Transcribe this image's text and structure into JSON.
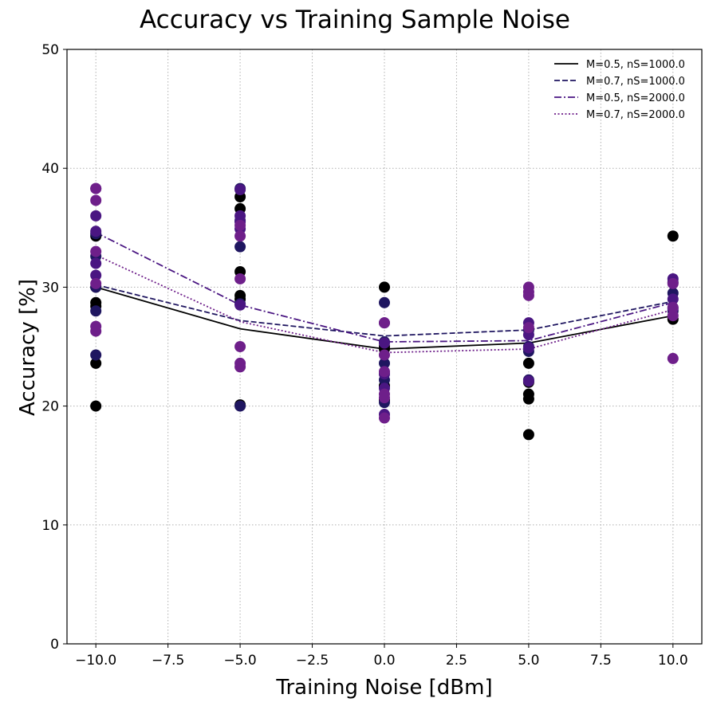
{
  "chart_data": {
    "type": "scatter",
    "title": "Accuracy vs Training Sample Noise",
    "xlabel": "Training Noise [dBm]",
    "ylabel": "Accuracy [%]",
    "xlim": [
      -11,
      11
    ],
    "ylim": [
      0,
      50
    ],
    "xticks": [
      -10,
      -7.5,
      -5,
      -2.5,
      0,
      2.5,
      5,
      7.5,
      10
    ],
    "xtick_labels": [
      "−10.0",
      "−7.5",
      "−5.0",
      "−2.5",
      "0.0",
      "2.5",
      "5.0",
      "7.5",
      "10.0"
    ],
    "yticks": [
      0,
      10,
      20,
      30,
      40,
      50
    ],
    "ytick_labels": [
      "0",
      "10",
      "20",
      "30",
      "40",
      "50"
    ],
    "grid": true,
    "legend_position": "top-right",
    "x": [
      -10,
      -5,
      0,
      5,
      10
    ],
    "series": [
      {
        "name": "M=0.5, nS=1000.0",
        "color": "#000000",
        "linestyle": "solid",
        "mean": [
          30.0,
          26.5,
          24.8,
          25.3,
          27.6
        ],
        "points": [
          [
            -10,
            20.0
          ],
          [
            -10,
            23.6
          ],
          [
            -10,
            28.4
          ],
          [
            -10,
            28.7
          ],
          [
            -10,
            34.3
          ],
          [
            -10,
            30.0
          ],
          [
            -5,
            20.1
          ],
          [
            -5,
            29.0
          ],
          [
            -5,
            29.3
          ],
          [
            -5,
            31.3
          ],
          [
            -5,
            36.6
          ],
          [
            -5,
            37.6
          ],
          [
            0,
            30.0
          ],
          [
            0,
            25.0
          ],
          [
            0,
            24.8
          ],
          [
            0,
            21.7
          ],
          [
            0,
            20.5
          ],
          [
            5,
            17.6
          ],
          [
            5,
            20.6
          ],
          [
            5,
            21.0
          ],
          [
            5,
            22.0
          ],
          [
            5,
            23.6
          ],
          [
            10,
            34.3
          ],
          [
            10,
            27.3
          ]
        ]
      },
      {
        "name": "M=0.7, nS=1000.0",
        "color": "#1f1660",
        "linestyle": "dashed",
        "mean": [
          30.2,
          27.2,
          25.9,
          26.4,
          28.8
        ],
        "points": [
          [
            -10,
            24.3
          ],
          [
            -10,
            28.0
          ],
          [
            -10,
            30.0
          ],
          [
            -10,
            32.6
          ],
          [
            -10,
            34.5
          ],
          [
            -5,
            20.0
          ],
          [
            -5,
            28.6
          ],
          [
            -5,
            33.4
          ],
          [
            -5,
            35.6
          ],
          [
            -5,
            38.3
          ],
          [
            0,
            28.7
          ],
          [
            0,
            25.4
          ],
          [
            0,
            23.6
          ],
          [
            0,
            22.2
          ],
          [
            0,
            20.3
          ],
          [
            5,
            22.2
          ],
          [
            5,
            24.6
          ],
          [
            5,
            25.0
          ],
          [
            5,
            26.4
          ],
          [
            10,
            29.5
          ],
          [
            10,
            30.4
          ],
          [
            10,
            28.0
          ]
        ]
      },
      {
        "name": "M=0.5, nS=2000.0",
        "color": "#4a1682",
        "linestyle": "dashdot",
        "mean": [
          34.6,
          28.5,
          25.4,
          25.5,
          28.7
        ],
        "points": [
          [
            -10,
            32.0
          ],
          [
            -10,
            34.7
          ],
          [
            -10,
            36.0
          ],
          [
            -10,
            38.3
          ],
          [
            -10,
            31.0
          ],
          [
            -5,
            34.9
          ],
          [
            -5,
            35.5
          ],
          [
            -5,
            36.0
          ],
          [
            -5,
            38.2
          ],
          [
            -5,
            28.5
          ],
          [
            0,
            27.0
          ],
          [
            0,
            25.3
          ],
          [
            0,
            22.7
          ],
          [
            0,
            21.5
          ],
          [
            0,
            19.3
          ],
          [
            5,
            22.1
          ],
          [
            5,
            24.9
          ],
          [
            5,
            26.0
          ],
          [
            5,
            27.0
          ],
          [
            10,
            30.7
          ],
          [
            10,
            29.0
          ],
          [
            10,
            28.2
          ]
        ]
      },
      {
        "name": "M=0.7, nS=2000.0",
        "color": "#6e1f8a",
        "linestyle": "dotted",
        "mean": [
          32.7,
          27.1,
          24.5,
          24.8,
          28.1
        ],
        "points": [
          [
            -10,
            26.3
          ],
          [
            -10,
            26.7
          ],
          [
            -10,
            30.3
          ],
          [
            -10,
            33.0
          ],
          [
            -10,
            37.3
          ],
          [
            -10,
            38.3
          ],
          [
            -5,
            23.3
          ],
          [
            -5,
            23.6
          ],
          [
            -5,
            25.0
          ],
          [
            -5,
            30.7
          ],
          [
            -5,
            34.3
          ],
          [
            -5,
            35.2
          ],
          [
            0,
            19.0
          ],
          [
            0,
            20.7
          ],
          [
            0,
            21.0
          ],
          [
            0,
            22.9
          ],
          [
            0,
            24.3
          ],
          [
            0,
            27.0
          ],
          [
            5,
            29.3
          ],
          [
            5,
            29.6
          ],
          [
            5,
            30.0
          ],
          [
            5,
            26.6
          ],
          [
            10,
            24.0
          ],
          [
            10,
            27.6
          ],
          [
            10,
            28.3
          ],
          [
            10,
            30.3
          ]
        ]
      }
    ]
  }
}
